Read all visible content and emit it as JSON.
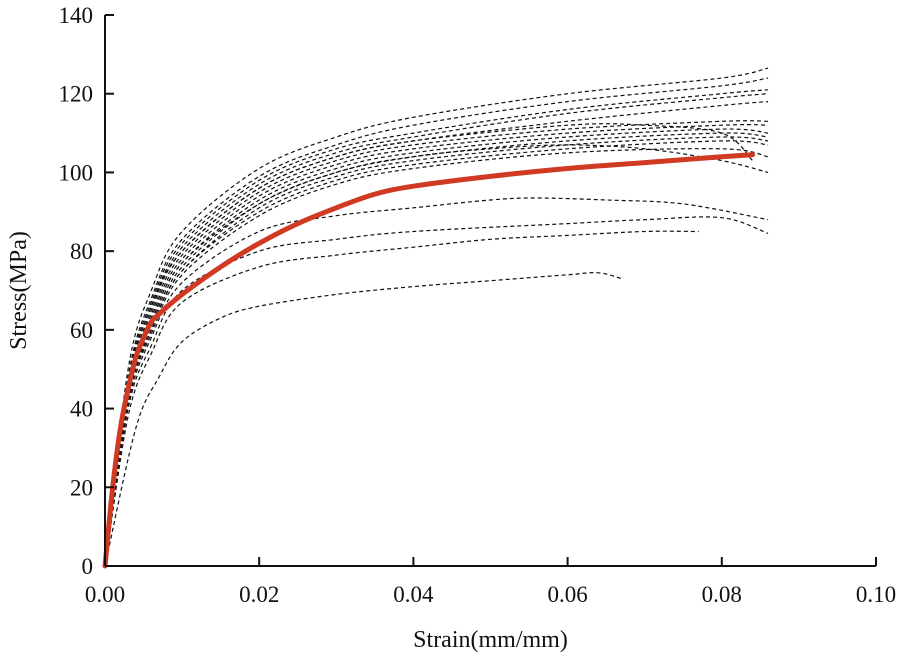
{
  "chart_data": {
    "type": "line",
    "title": "",
    "xlabel": "Strain(mm/mm)",
    "ylabel": "Stress(MPa)",
    "xlim": [
      0,
      0.1
    ],
    "ylim": [
      0,
      140
    ],
    "x_ticks": [
      "0.00",
      "0.02",
      "0.04",
      "0.06",
      "0.08",
      "0.10"
    ],
    "y_ticks": [
      "0",
      "20",
      "40",
      "60",
      "80",
      "100",
      "120",
      "140"
    ],
    "grid": false,
    "legend": "none",
    "colors": {
      "mean": "#d03a22",
      "specimens": "#111111"
    },
    "series": [
      {
        "style": "solid",
        "color": "#d03a22",
        "points": [
          [
            0,
            0
          ],
          [
            0.001,
            20
          ],
          [
            0.002,
            35
          ],
          [
            0.003,
            45
          ],
          [
            0.004,
            53
          ],
          [
            0.005,
            58
          ],
          [
            0.006,
            62
          ],
          [
            0.007,
            64
          ],
          [
            0.01,
            69
          ],
          [
            0.015,
            76
          ],
          [
            0.02,
            82
          ],
          [
            0.025,
            87
          ],
          [
            0.03,
            91
          ],
          [
            0.035,
            94.5
          ],
          [
            0.04,
            96.5
          ],
          [
            0.05,
            99
          ],
          [
            0.06,
            101
          ],
          [
            0.07,
            102.5
          ],
          [
            0.08,
            104
          ],
          [
            0.084,
            104.5
          ]
        ]
      },
      {
        "style": "dashed",
        "points": [
          [
            0,
            0
          ],
          [
            0.003,
            50
          ],
          [
            0.006,
            70
          ],
          [
            0.01,
            85
          ],
          [
            0.02,
            101
          ],
          [
            0.03,
            109
          ],
          [
            0.04,
            114
          ],
          [
            0.06,
            120
          ],
          [
            0.08,
            124
          ],
          [
            0.086,
            126.5
          ]
        ]
      },
      {
        "style": "dashed",
        "points": [
          [
            0,
            0
          ],
          [
            0.003,
            48
          ],
          [
            0.006,
            68
          ],
          [
            0.01,
            83
          ],
          [
            0.02,
            99
          ],
          [
            0.03,
            107
          ],
          [
            0.04,
            112
          ],
          [
            0.06,
            118
          ],
          [
            0.08,
            122
          ],
          [
            0.086,
            124
          ]
        ]
      },
      {
        "style": "dashed",
        "points": [
          [
            0,
            0
          ],
          [
            0.003,
            47
          ],
          [
            0.006,
            67
          ],
          [
            0.01,
            82
          ],
          [
            0.02,
            98
          ],
          [
            0.03,
            106
          ],
          [
            0.04,
            110
          ],
          [
            0.06,
            116
          ],
          [
            0.08,
            120
          ],
          [
            0.086,
            121
          ]
        ]
      },
      {
        "style": "dashed",
        "points": [
          [
            0,
            0
          ],
          [
            0.003,
            46
          ],
          [
            0.006,
            66
          ],
          [
            0.01,
            81
          ],
          [
            0.02,
            97
          ],
          [
            0.03,
            105
          ],
          [
            0.04,
            109
          ],
          [
            0.06,
            115
          ],
          [
            0.08,
            119
          ],
          [
            0.086,
            120
          ]
        ]
      },
      {
        "style": "dashed",
        "points": [
          [
            0,
            0
          ],
          [
            0.003,
            45
          ],
          [
            0.006,
            65
          ],
          [
            0.01,
            80
          ],
          [
            0.02,
            96
          ],
          [
            0.03,
            104
          ],
          [
            0.04,
            108
          ],
          [
            0.06,
            113
          ],
          [
            0.08,
            117
          ],
          [
            0.086,
            118
          ]
        ]
      },
      {
        "style": "dashed",
        "points": [
          [
            0,
            0
          ],
          [
            0.003,
            45
          ],
          [
            0.006,
            64
          ],
          [
            0.01,
            79
          ],
          [
            0.02,
            95
          ],
          [
            0.03,
            103
          ],
          [
            0.04,
            107
          ],
          [
            0.06,
            111
          ],
          [
            0.08,
            113
          ],
          [
            0.086,
            113
          ]
        ]
      },
      {
        "style": "dashed",
        "points": [
          [
            0,
            0
          ],
          [
            0.003,
            44
          ],
          [
            0.006,
            63
          ],
          [
            0.01,
            78
          ],
          [
            0.02,
            94
          ],
          [
            0.03,
            102
          ],
          [
            0.04,
            106
          ],
          [
            0.06,
            110
          ],
          [
            0.08,
            112
          ],
          [
            0.086,
            112
          ]
        ]
      },
      {
        "style": "dashed",
        "points": [
          [
            0,
            0
          ],
          [
            0.003,
            44
          ],
          [
            0.006,
            62
          ],
          [
            0.01,
            77
          ],
          [
            0.02,
            93
          ],
          [
            0.03,
            101
          ],
          [
            0.04,
            105
          ],
          [
            0.06,
            109
          ],
          [
            0.08,
            111
          ],
          [
            0.086,
            110
          ]
        ]
      },
      {
        "style": "dashed",
        "points": [
          [
            0,
            0
          ],
          [
            0.003,
            43
          ],
          [
            0.006,
            61
          ],
          [
            0.01,
            76
          ],
          [
            0.02,
            92
          ],
          [
            0.03,
            100
          ],
          [
            0.04,
            104
          ],
          [
            0.06,
            108
          ],
          [
            0.08,
            110
          ],
          [
            0.086,
            109
          ]
        ]
      },
      {
        "style": "dashed",
        "points": [
          [
            0,
            0
          ],
          [
            0.003,
            43
          ],
          [
            0.006,
            60
          ],
          [
            0.01,
            75
          ],
          [
            0.02,
            91
          ],
          [
            0.03,
            99
          ],
          [
            0.04,
            103
          ],
          [
            0.06,
            107
          ],
          [
            0.08,
            109
          ],
          [
            0.086,
            108
          ]
        ]
      },
      {
        "style": "dashed",
        "points": [
          [
            0,
            0
          ],
          [
            0.003,
            42
          ],
          [
            0.006,
            60
          ],
          [
            0.01,
            75
          ],
          [
            0.02,
            90
          ],
          [
            0.03,
            98
          ],
          [
            0.04,
            102
          ],
          [
            0.06,
            106
          ],
          [
            0.08,
            108
          ],
          [
            0.086,
            107
          ]
        ]
      },
      {
        "style": "dashed",
        "points": [
          [
            0,
            0
          ],
          [
            0.003,
            42
          ],
          [
            0.006,
            59
          ],
          [
            0.01,
            74
          ],
          [
            0.02,
            89
          ],
          [
            0.03,
            97
          ],
          [
            0.04,
            101
          ],
          [
            0.06,
            105
          ],
          [
            0.08,
            106
          ],
          [
            0.086,
            104
          ]
        ]
      },
      {
        "style": "dashed",
        "points": [
          [
            0,
            0
          ],
          [
            0.003,
            46
          ],
          [
            0.006,
            66
          ],
          [
            0.01,
            80
          ],
          [
            0.02,
            96
          ],
          [
            0.03,
            104
          ],
          [
            0.04,
            108
          ],
          [
            0.06,
            112
          ],
          [
            0.07,
            112
          ],
          [
            0.08,
            110
          ],
          [
            0.084,
            103
          ]
        ]
      },
      {
        "style": "dashed",
        "points": [
          [
            0,
            0
          ],
          [
            0.003,
            44
          ],
          [
            0.006,
            62
          ],
          [
            0.01,
            77
          ],
          [
            0.02,
            92
          ],
          [
            0.03,
            100
          ],
          [
            0.04,
            104
          ],
          [
            0.05,
            106
          ],
          [
            0.06,
            107
          ],
          [
            0.07,
            106
          ],
          [
            0.08,
            103
          ],
          [
            0.086,
            100
          ]
        ]
      },
      {
        "style": "dashed",
        "points": [
          [
            0,
            0
          ],
          [
            0.003,
            41
          ],
          [
            0.006,
            58
          ],
          [
            0.01,
            72
          ],
          [
            0.02,
            85
          ],
          [
            0.03,
            89
          ],
          [
            0.04,
            91
          ],
          [
            0.05,
            93
          ],
          [
            0.056,
            93.5
          ],
          [
            0.065,
            93
          ],
          [
            0.075,
            92
          ],
          [
            0.086,
            88
          ]
        ]
      },
      {
        "style": "dashed",
        "points": [
          [
            0,
            0
          ],
          [
            0.003,
            40
          ],
          [
            0.006,
            56
          ],
          [
            0.01,
            70
          ],
          [
            0.02,
            80
          ],
          [
            0.03,
            83
          ],
          [
            0.04,
            85
          ],
          [
            0.06,
            87
          ],
          [
            0.07,
            88
          ],
          [
            0.08,
            88.5
          ],
          [
            0.086,
            84.5
          ]
        ]
      },
      {
        "style": "dashed",
        "points": [
          [
            0,
            0
          ],
          [
            0.003,
            38
          ],
          [
            0.006,
            54
          ],
          [
            0.01,
            67
          ],
          [
            0.02,
            76
          ],
          [
            0.03,
            79
          ],
          [
            0.04,
            81
          ],
          [
            0.05,
            83
          ],
          [
            0.06,
            84
          ],
          [
            0.07,
            85
          ],
          [
            0.077,
            85
          ]
        ]
      },
      {
        "style": "dashed",
        "points": [
          [
            0,
            0
          ],
          [
            0.004,
            35
          ],
          [
            0.007,
            48
          ],
          [
            0.01,
            57
          ],
          [
            0.015,
            63
          ],
          [
            0.02,
            66
          ],
          [
            0.03,
            69
          ],
          [
            0.04,
            71
          ],
          [
            0.05,
            72.5
          ],
          [
            0.06,
            74
          ],
          [
            0.064,
            74.5
          ],
          [
            0.067,
            73
          ]
        ]
      }
    ]
  }
}
